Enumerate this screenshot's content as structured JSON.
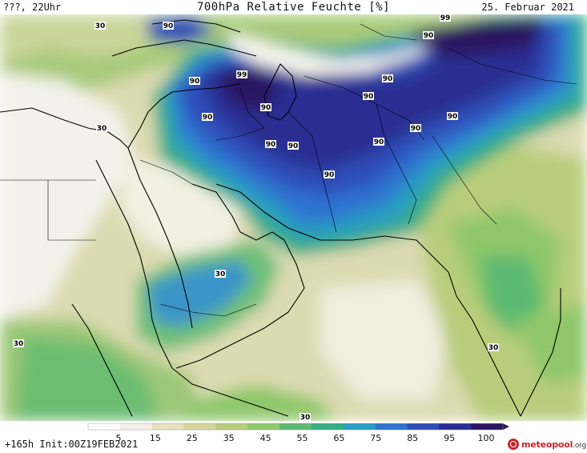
{
  "header": {
    "left": "???, 22Uhr",
    "center": "700hPa Relative Feuchte [%]",
    "right": "25. Februar 2021"
  },
  "footer": {
    "left": "+165h  Init:00Z19FEB2021"
  },
  "logo": {
    "text": "meteopool",
    "suffix": ".org"
  },
  "legend": {
    "colors": [
      "#ffffff",
      "#f4f2e6",
      "#e6e2c0",
      "#d4d59a",
      "#b8cd7c",
      "#8fc76a",
      "#5cba70",
      "#35ad86",
      "#2a9cc2",
      "#2f72d0",
      "#2e4db8",
      "#2a2e92",
      "#2a1660"
    ],
    "tick_labels": [
      "5",
      "15",
      "25",
      "35",
      "45",
      "55",
      "65",
      "75",
      "85",
      "95",
      "100"
    ]
  },
  "contour_labels": [
    {
      "text": "30",
      "region": "top-left"
    },
    {
      "text": "30",
      "region": "left"
    },
    {
      "text": "90",
      "region": "black-sea"
    },
    {
      "text": "90",
      "region": "caucasus"
    },
    {
      "text": "99",
      "region": "caucasus"
    },
    {
      "text": "90",
      "region": "turkey-east"
    },
    {
      "text": "90",
      "region": "caspian"
    },
    {
      "text": "90",
      "region": "iran"
    },
    {
      "text": "90",
      "region": "iran"
    },
    {
      "text": "90",
      "region": "iran-east"
    },
    {
      "text": "90",
      "region": "afghanistan"
    },
    {
      "text": "90",
      "region": "central-asia"
    },
    {
      "text": "90",
      "region": "central-asia"
    },
    {
      "text": "90",
      "region": "kazakhstan"
    },
    {
      "text": "99",
      "region": "kazakhstan"
    },
    {
      "text": "90",
      "region": "pakistan"
    },
    {
      "text": "90",
      "region": "himalaya"
    },
    {
      "text": "30",
      "region": "arabia"
    },
    {
      "text": "30",
      "region": "india"
    },
    {
      "text": "30",
      "region": "arabian-sea"
    },
    {
      "text": "30",
      "region": "africa"
    }
  ]
}
